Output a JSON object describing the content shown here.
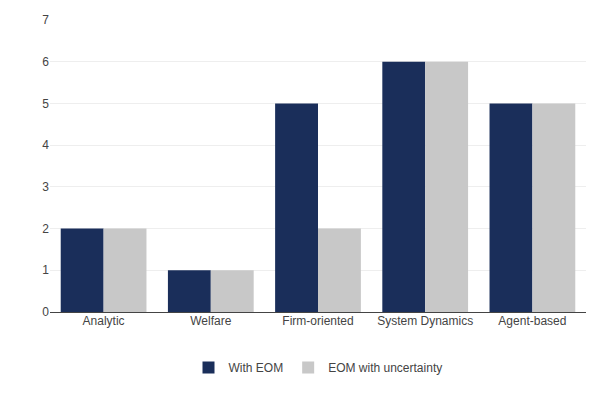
{
  "chart_data": {
    "type": "bar",
    "categories": [
      "Analytic",
      "Welfare",
      "Firm-oriented",
      "System Dynamics",
      "Agent-based"
    ],
    "series": [
      {
        "name": "With EOM",
        "color": "#1a2e5a",
        "values": [
          2,
          1,
          5,
          6,
          5
        ]
      },
      {
        "name": "EOM with uncertainty",
        "color": "#c8c8c8",
        "values": [
          2,
          1,
          2,
          6,
          5
        ]
      }
    ],
    "ylim": [
      0,
      7
    ],
    "yticks": [
      0,
      1,
      2,
      3,
      4,
      5,
      6,
      7
    ],
    "grid": true,
    "legend": "bottom"
  }
}
